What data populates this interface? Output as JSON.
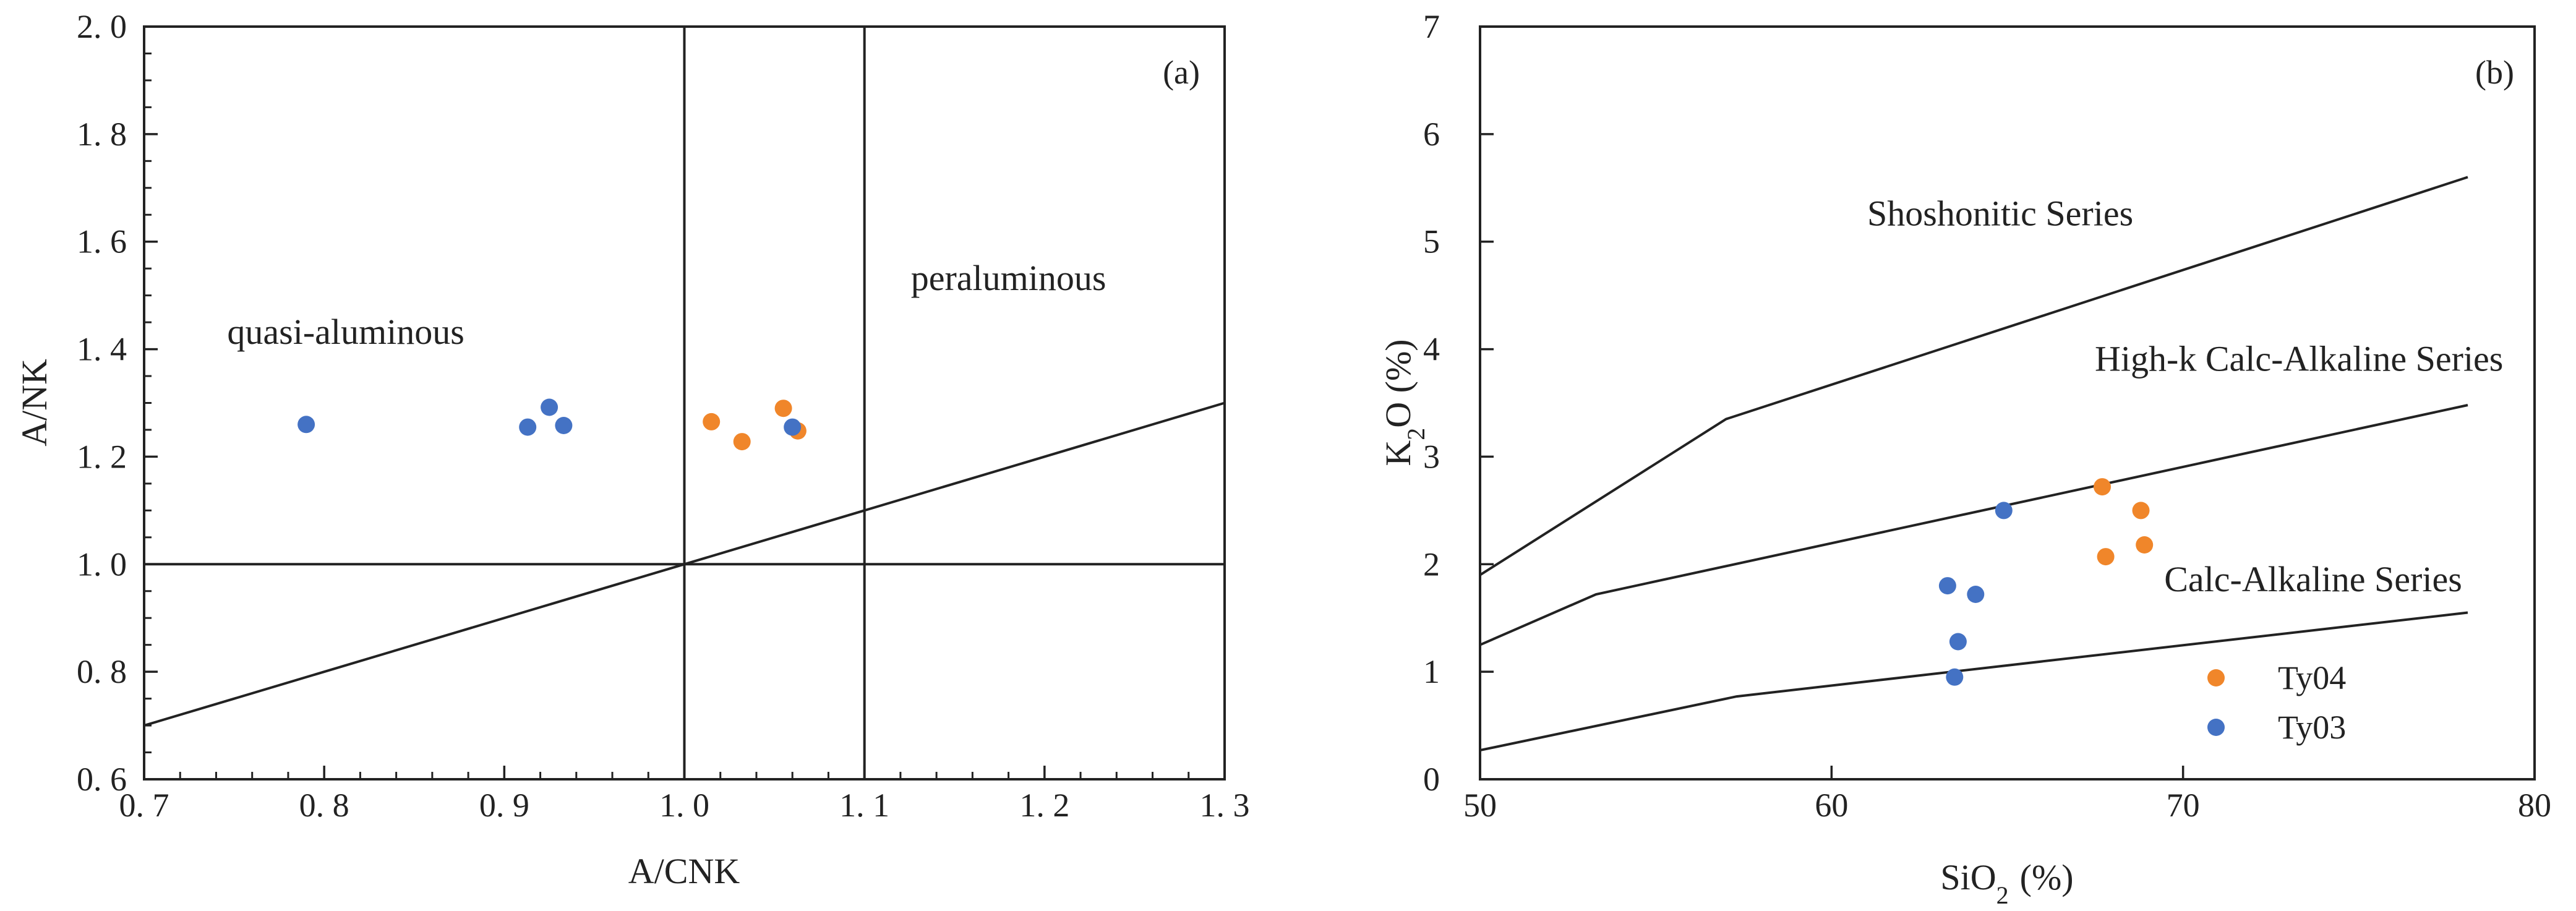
{
  "colors": {
    "Ty04": "#f0862a",
    "Ty03": "#4472c4",
    "axis": "#222222"
  },
  "chart_data": [
    {
      "type": "scatter",
      "panel_label": "(a)",
      "xlabel": "A/CNK",
      "ylabel": "A/NK",
      "xlim": [
        0.7,
        1.3
      ],
      "ylim": [
        0.6,
        2.0
      ],
      "x_ticks": [
        0.7,
        0.8,
        0.9,
        1.0,
        1.1,
        1.2,
        1.3
      ],
      "x_tick_labels": [
        "0. 7",
        "0. 8",
        "0. 9",
        "1. 0",
        "1. 1",
        "1. 2",
        "1. 3"
      ],
      "y_ticks": [
        0.6,
        0.8,
        1.0,
        1.2,
        1.4,
        1.6,
        1.8,
        2.0
      ],
      "y_tick_labels": [
        "0. 6",
        "0. 8",
        "1. 0",
        "1. 2",
        "1. 4",
        "1. 6",
        "1. 8",
        "2. 0"
      ],
      "grid": false,
      "fields": [
        {
          "text": "quasi-aluminous",
          "x": 0.812,
          "y": 1.41
        },
        {
          "text": "peraluminous",
          "x": 1.18,
          "y": 1.51
        }
      ],
      "boundaries": [
        {
          "points": [
            [
              1.0,
              0.6
            ],
            [
              1.0,
              2.0
            ]
          ]
        },
        {
          "points": [
            [
              1.1,
              0.6
            ],
            [
              1.1,
              2.0
            ]
          ]
        },
        {
          "points": [
            [
              0.7,
              1.0
            ],
            [
              1.3,
              1.0
            ]
          ]
        },
        {
          "points": [
            [
              0.7,
              0.7
            ],
            [
              1.3,
              1.3
            ]
          ]
        }
      ],
      "series": [
        {
          "key": "Ty04",
          "points": [
            [
              1.015,
              1.265
            ],
            [
              1.032,
              1.228
            ],
            [
              1.055,
              1.29
            ],
            [
              1.063,
              1.248
            ]
          ]
        },
        {
          "key": "Ty03",
          "points": [
            [
              0.79,
              1.26
            ],
            [
              0.913,
              1.255
            ],
            [
              0.925,
              1.292
            ],
            [
              0.933,
              1.258
            ],
            [
              1.06,
              1.255
            ]
          ]
        }
      ]
    },
    {
      "type": "scatter",
      "panel_label": "(b)",
      "xlabel": "SiO2 (%)",
      "ylabel": "K2O (%)",
      "xlim": [
        50,
        80
      ],
      "ylim": [
        0,
        7
      ],
      "x_ticks": [
        50,
        60,
        70,
        80
      ],
      "x_tick_labels": [
        "50",
        "60",
        "70",
        "80"
      ],
      "y_ticks": [
        0,
        1,
        2,
        3,
        4,
        5,
        6,
        7
      ],
      "y_tick_labels": [
        "0",
        "1",
        "2",
        "3",
        "4",
        "5",
        "6",
        "7"
      ],
      "grid": false,
      "legend_placement": "bottom-right",
      "fields": [
        {
          "text": "Shoshonitic Series",
          "x": 64.8,
          "y": 5.15
        },
        {
          "text": "High-k Calc-Alkaline Series",
          "x": 73.3,
          "y": 3.8
        },
        {
          "text": "Calc-Alkaline Series",
          "x": 73.7,
          "y": 1.75
        }
      ],
      "boundaries": [
        {
          "points": [
            [
              50,
              1.9
            ],
            [
              57,
              3.35
            ],
            [
              78.1,
              5.6
            ]
          ]
        },
        {
          "points": [
            [
              50,
              1.25
            ],
            [
              53.3,
              1.72
            ],
            [
              78.1,
              3.48
            ]
          ]
        },
        {
          "points": [
            [
              50,
              0.27
            ],
            [
              57.3,
              0.77
            ],
            [
              78.1,
              1.55
            ]
          ]
        }
      ],
      "legend": [
        {
          "key": "Ty04",
          "label": "Ty04"
        },
        {
          "key": "Ty03",
          "label": "Ty03"
        }
      ],
      "series": [
        {
          "key": "Ty04",
          "points": [
            [
              67.7,
              2.72
            ],
            [
              68.8,
              2.5
            ],
            [
              68.9,
              2.18
            ],
            [
              67.8,
              2.07
            ]
          ]
        },
        {
          "key": "Ty03",
          "points": [
            [
              64.9,
              2.5
            ],
            [
              63.3,
              1.8
            ],
            [
              64.1,
              1.72
            ],
            [
              63.6,
              1.28
            ],
            [
              63.5,
              0.95
            ]
          ]
        }
      ]
    }
  ]
}
